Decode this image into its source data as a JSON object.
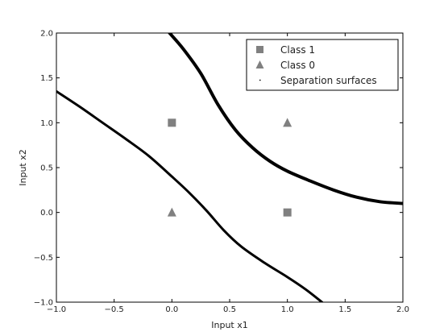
{
  "chart_data": {
    "type": "scatter",
    "title": "",
    "xlabel": "Input x1",
    "ylabel": "Input x2",
    "xlim": [
      -1.0,
      2.0
    ],
    "ylim": [
      -1.0,
      2.0
    ],
    "x_ticks": [
      -1.0,
      -0.5,
      0.0,
      0.5,
      1.0,
      1.5,
      2.0
    ],
    "x_tick_labels": [
      "−1.0",
      "−0.5",
      "0.0",
      "0.5",
      "1.0",
      "1.5",
      "2.0"
    ],
    "y_ticks": [
      -1.0,
      -0.5,
      0.0,
      0.5,
      1.0,
      1.5,
      2.0
    ],
    "y_tick_labels": [
      "−1.0",
      "−0.5",
      "0.0",
      "0.5",
      "1.0",
      "1.5",
      "2.0"
    ],
    "grid": false,
    "legend_position": "top-right",
    "series": [
      {
        "name": "Class 1",
        "marker": "square",
        "color": "#808080",
        "points": [
          {
            "x": 0.0,
            "y": 1.0
          },
          {
            "x": 1.0,
            "y": 0.0
          }
        ]
      },
      {
        "name": "Class 0",
        "marker": "triangle",
        "color": "#808080",
        "points": [
          {
            "x": 0.0,
            "y": 0.0
          },
          {
            "x": 1.0,
            "y": 1.0
          }
        ]
      }
    ],
    "separation": {
      "name": "Separation surfaces",
      "color": "#000000",
      "curves": [
        [
          [
            -0.02,
            2.0
          ],
          [
            0.1,
            1.82
          ],
          [
            0.25,
            1.55
          ],
          [
            0.4,
            1.2
          ],
          [
            0.55,
            0.92
          ],
          [
            0.7,
            0.72
          ],
          [
            0.85,
            0.57
          ],
          [
            1.0,
            0.46
          ],
          [
            1.2,
            0.35
          ],
          [
            1.4,
            0.25
          ],
          [
            1.6,
            0.17
          ],
          [
            1.8,
            0.12
          ],
          [
            2.0,
            0.1
          ]
        ],
        [
          [
            -1.0,
            1.35
          ],
          [
            -0.8,
            1.18
          ],
          [
            -0.6,
            1.0
          ],
          [
            -0.4,
            0.82
          ],
          [
            -0.2,
            0.63
          ],
          [
            0.0,
            0.4
          ],
          [
            0.15,
            0.22
          ],
          [
            0.3,
            0.02
          ],
          [
            0.45,
            -0.2
          ],
          [
            0.6,
            -0.38
          ],
          [
            0.8,
            -0.56
          ],
          [
            1.0,
            -0.72
          ],
          [
            1.15,
            -0.85
          ],
          [
            1.3,
            -1.0
          ]
        ]
      ]
    }
  }
}
